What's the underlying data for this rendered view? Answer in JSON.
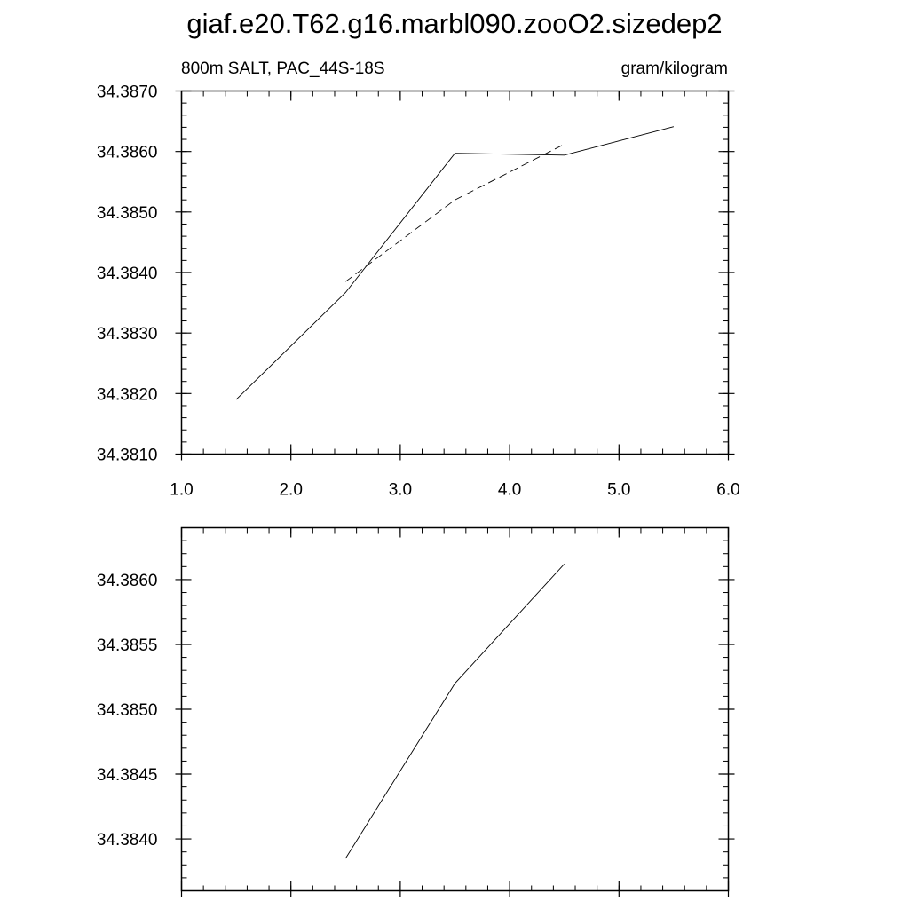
{
  "figure": {
    "title": "giaf.e20.T62.g16.marbl090.zooO2.sizedep2"
  },
  "chart_data": [
    {
      "type": "line",
      "title_left": "800m SALT, PAC_44S-18S",
      "title_right": "gram/kilogram",
      "xlim": [
        1.0,
        6.0
      ],
      "ylim": [
        34.381,
        34.387
      ],
      "x_ticks": [
        1.0,
        2.0,
        3.0,
        4.0,
        5.0,
        6.0
      ],
      "x_tick_labels": [
        "1.0",
        "2.0",
        "3.0",
        "4.0",
        "5.0",
        "6.0"
      ],
      "y_ticks": [
        34.381,
        34.382,
        34.383,
        34.384,
        34.385,
        34.386,
        34.387
      ],
      "y_tick_labels": [
        "34.3810",
        "34.3820",
        "34.3830",
        "34.3840",
        "34.3850",
        "34.3860",
        "34.3870"
      ],
      "grid": false,
      "series": [
        {
          "style": "solid",
          "x": [
            1.5,
            2.5,
            3.5,
            4.5,
            5.5
          ],
          "y": [
            34.3819,
            34.38367,
            34.38597,
            34.38594,
            34.38641
          ]
        },
        {
          "style": "dashed",
          "x": [
            2.5,
            3.5,
            4.5
          ],
          "y": [
            34.38385,
            34.3852,
            34.38612
          ]
        }
      ]
    },
    {
      "type": "line",
      "xlim": [
        1.0,
        6.0
      ],
      "ylim": [
        34.3836,
        34.3864
      ],
      "x_ticks": [
        1.0,
        2.0,
        3.0,
        4.0,
        5.0,
        6.0
      ],
      "y_ticks": [
        34.384,
        34.3845,
        34.385,
        34.3855,
        34.386
      ],
      "y_tick_labels": [
        "34.3840",
        "34.3845",
        "34.3850",
        "34.3855",
        "34.3860"
      ],
      "grid": false,
      "series": [
        {
          "style": "solid",
          "x": [
            2.5,
            3.5,
            4.5
          ],
          "y": [
            34.38385,
            34.3852,
            34.38612
          ]
        }
      ]
    }
  ]
}
